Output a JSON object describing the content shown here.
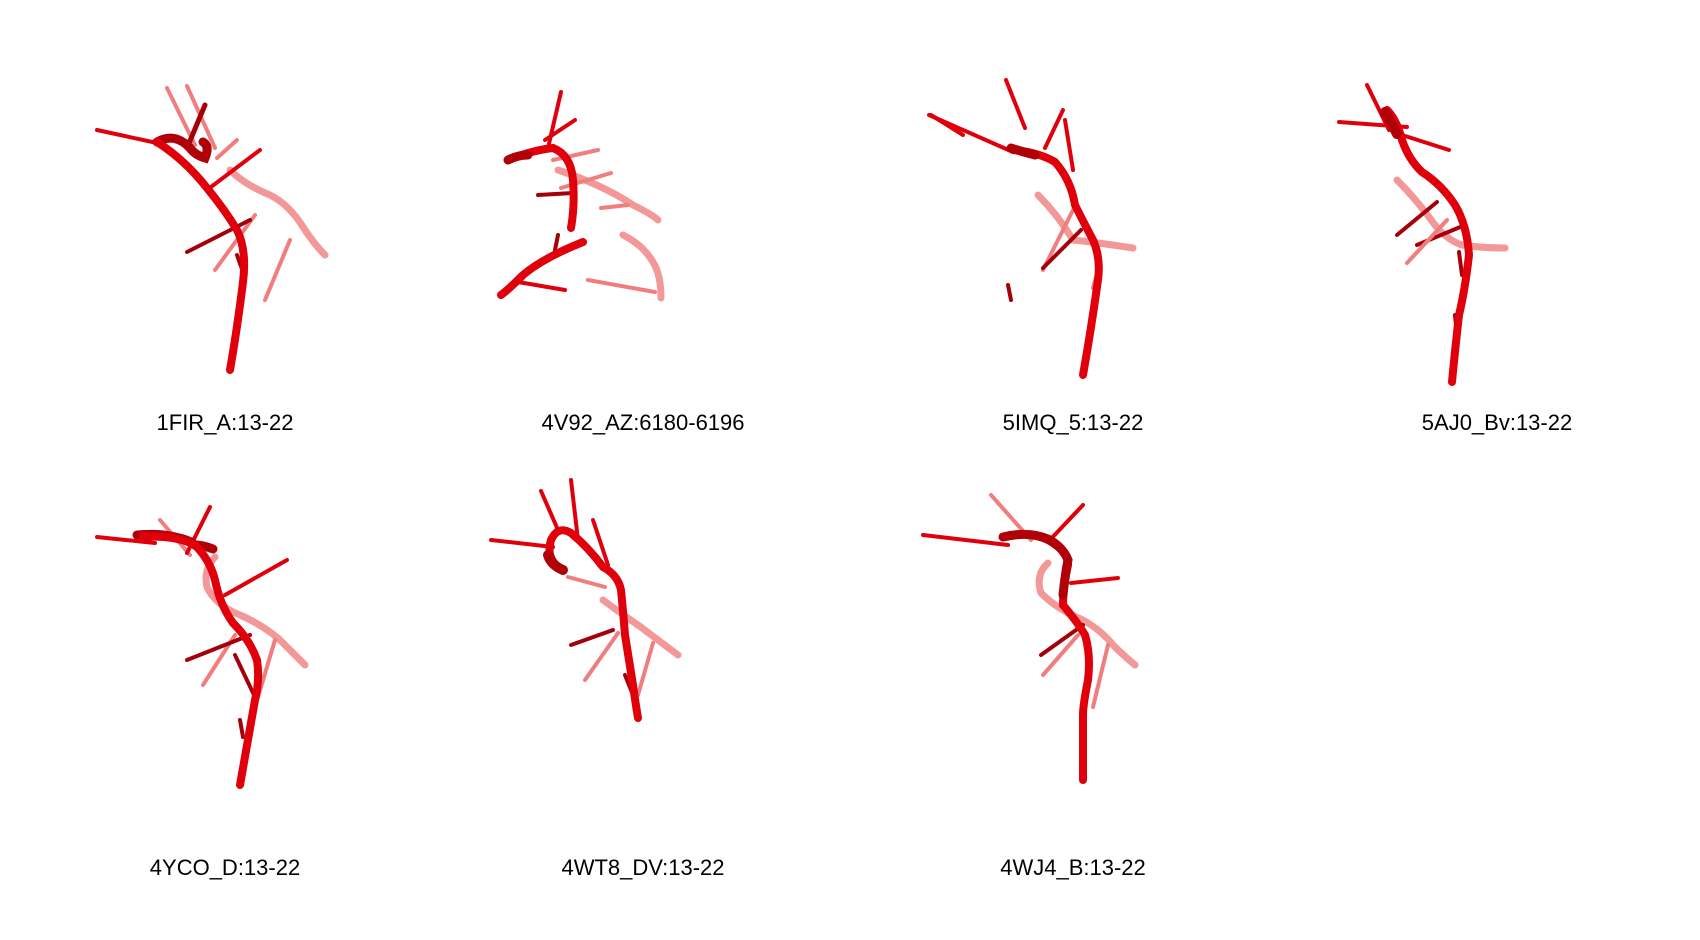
{
  "colors": {
    "backbone": "#e0000b",
    "backbone_dark": "#b00008",
    "base_light": "#f07e7e",
    "base_dark": "#a5000a",
    "label": "#000000"
  },
  "structures": [
    {
      "id": "1FIR_A:13-22"
    },
    {
      "id": "4V92_AZ:6180-6196"
    },
    {
      "id": "5IMQ_5:13-22"
    },
    {
      "id": "5AJ0_Bv:13-22"
    },
    {
      "id": "4YCO_D:13-22"
    },
    {
      "id": "4WT8_DV:13-22"
    },
    {
      "id": "4WJ4_B:13-22"
    }
  ]
}
